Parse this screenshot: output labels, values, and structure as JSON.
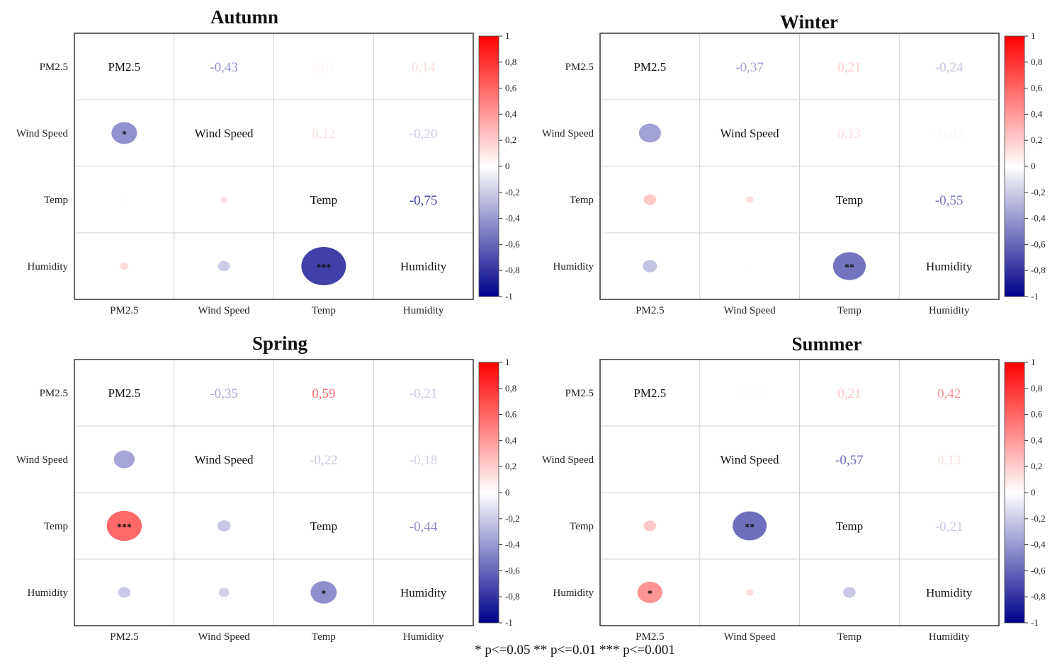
{
  "chart_data": [
    {
      "type": "heatmap",
      "title": "Autumn",
      "variables": [
        "PM2.5",
        "Wind Speed",
        "Temp",
        "Humidity"
      ],
      "values": [
        [
          1.0,
          -0.43,
          0.04,
          0.14
        ],
        [
          -0.43,
          1.0,
          0.12,
          -0.2
        ],
        [
          0.04,
          0.12,
          1.0,
          -0.75
        ],
        [
          0.14,
          -0.2,
          -0.75,
          1.0
        ]
      ],
      "upper_labels": [
        [
          null,
          "-0,43",
          "0,04",
          "0,14"
        ],
        [
          null,
          null,
          "0,12",
          "-0,20"
        ],
        [
          null,
          null,
          null,
          "-0,75"
        ]
      ],
      "significance": [
        [
          null,
          null,
          null,
          null
        ],
        [
          "*",
          null,
          null,
          null
        ],
        [
          null,
          null,
          null,
          null
        ],
        [
          null,
          null,
          "***",
          null
        ]
      ]
    },
    {
      "type": "heatmap",
      "title": "Winter",
      "variables": [
        "PM2.5",
        "Wind Speed",
        "Temp",
        "Humidity"
      ],
      "values": [
        [
          1.0,
          -0.37,
          0.21,
          -0.24
        ],
        [
          -0.37,
          1.0,
          0.13,
          -0.03
        ],
        [
          0.21,
          0.13,
          1.0,
          -0.55
        ],
        [
          -0.24,
          -0.03,
          -0.55,
          1.0
        ]
      ],
      "upper_labels": [
        [
          null,
          "-0,37",
          "0,21",
          "-0,24"
        ],
        [
          null,
          null,
          "0,13",
          "-0,03"
        ],
        [
          null,
          null,
          null,
          "-0,55"
        ]
      ],
      "significance": [
        [
          null,
          null,
          null,
          null
        ],
        [
          null,
          null,
          null,
          null
        ],
        [
          null,
          null,
          null,
          null
        ],
        [
          null,
          null,
          "**",
          null
        ]
      ]
    },
    {
      "type": "heatmap",
      "title": "Spring",
      "variables": [
        "PM2.5",
        "Wind Speed",
        "Temp",
        "Humidity"
      ],
      "values": [
        [
          1.0,
          -0.35,
          0.59,
          -0.21
        ],
        [
          -0.35,
          1.0,
          -0.22,
          -0.18
        ],
        [
          0.59,
          -0.22,
          1.0,
          -0.44
        ],
        [
          -0.21,
          -0.18,
          -0.44,
          1.0
        ]
      ],
      "upper_labels": [
        [
          null,
          "-0,35",
          "0,59",
          "-0,21"
        ],
        [
          null,
          null,
          "-0,22",
          "-0,18"
        ],
        [
          null,
          null,
          null,
          "-0,44"
        ]
      ],
      "significance": [
        [
          null,
          null,
          null,
          null
        ],
        [
          null,
          null,
          null,
          null
        ],
        [
          "***",
          null,
          null,
          null
        ],
        [
          null,
          null,
          "*",
          null
        ]
      ]
    },
    {
      "type": "heatmap",
      "title": "Summer",
      "variables": [
        "PM2.5",
        "Wind Speed",
        "Temp",
        "Humidity"
      ],
      "values": [
        [
          1.0,
          -0.01,
          0.21,
          0.42
        ],
        [
          -0.01,
          1.0,
          -0.57,
          0.13
        ],
        [
          0.21,
          -0.57,
          1.0,
          -0.21
        ],
        [
          0.42,
          0.13,
          -0.21,
          1.0
        ]
      ],
      "upper_labels": [
        [
          null,
          "-0,01",
          "0,21",
          "0,42"
        ],
        [
          null,
          null,
          "-0,57",
          "0,13"
        ],
        [
          null,
          null,
          null,
          "-0,21"
        ]
      ],
      "significance": [
        [
          null,
          null,
          null,
          null
        ],
        [
          null,
          null,
          null,
          null
        ],
        [
          null,
          "**",
          null,
          null
        ],
        [
          "*",
          null,
          null,
          null
        ]
      ]
    }
  ],
  "colorbar": {
    "ticks": [
      1,
      0.8,
      0.6,
      0.4,
      0.2,
      0,
      -0.2,
      -0.4,
      -0.6,
      -0.8,
      -1
    ],
    "tick_labels": [
      "1",
      "0,8",
      "0,6",
      "0,4",
      "0,2",
      "0",
      "-0,2",
      "-0,4",
      "-0,6",
      "-0,8",
      "-1"
    ],
    "colors": {
      "negative": "#00008b",
      "zero": "#ffffff",
      "positive": "#ff0000"
    }
  },
  "footnote": "* p<=0.05   ** p<=0.01   *** p<=0.001"
}
